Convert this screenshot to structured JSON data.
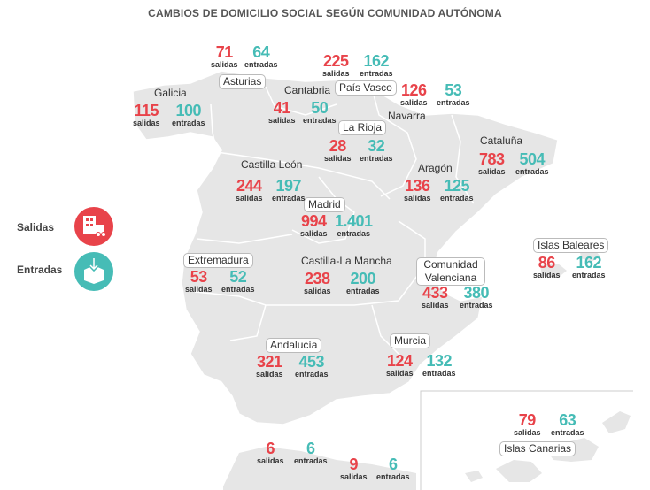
{
  "title": "CAMBIOS DE DOMICILIO SOCIAL SEGÚN COMUNIDAD AUTÓNOMA",
  "colors": {
    "salidas": "#e8434a",
    "entradas": "#46bcb6",
    "map": "#e6e6e6"
  },
  "legend": {
    "salidas": {
      "label": "Salidas",
      "icon": "building-truck-icon"
    },
    "entradas": {
      "label": "Entradas",
      "icon": "box-arrow-icon"
    }
  },
  "labels": {
    "out": "salidas",
    "in": "entradas"
  },
  "regions": [
    {
      "name": "Galicia",
      "salidas": "115",
      "entradas": "100"
    },
    {
      "name": "Asturias",
      "salidas": "71",
      "entradas": "64"
    },
    {
      "name": "Cantabria",
      "salidas": "41",
      "entradas": "50"
    },
    {
      "name": "País Vasco",
      "salidas": "225",
      "entradas": "162"
    },
    {
      "name": "Navarra",
      "salidas": "126",
      "entradas": "53"
    },
    {
      "name": "La Rioja",
      "salidas": "28",
      "entradas": "32"
    },
    {
      "name": "Cataluña",
      "salidas": "783",
      "entradas": "504"
    },
    {
      "name": "Castilla León",
      "salidas": "244",
      "entradas": "197"
    },
    {
      "name": "Aragón",
      "salidas": "136",
      "entradas": "125"
    },
    {
      "name": "Madrid",
      "salidas": "994",
      "entradas": "1.401"
    },
    {
      "name": "Islas Baleares",
      "salidas": "86",
      "entradas": "162"
    },
    {
      "name": "Extremadura",
      "salidas": "53",
      "entradas": "52"
    },
    {
      "name": "Castilla-La Mancha",
      "salidas": "238",
      "entradas": "200"
    },
    {
      "name": "Comunidad Valenciana",
      "salidas": "433",
      "entradas": "380"
    },
    {
      "name": "Andalucía",
      "salidas": "321",
      "entradas": "453"
    },
    {
      "name": "Murcia",
      "salidas": "124",
      "entradas": "132"
    },
    {
      "name": "Islas Canarias",
      "salidas": "79",
      "entradas": "63"
    },
    {
      "name": "",
      "salidas": "6",
      "entradas": "6"
    },
    {
      "name": "",
      "salidas": "9",
      "entradas": "6"
    }
  ]
}
